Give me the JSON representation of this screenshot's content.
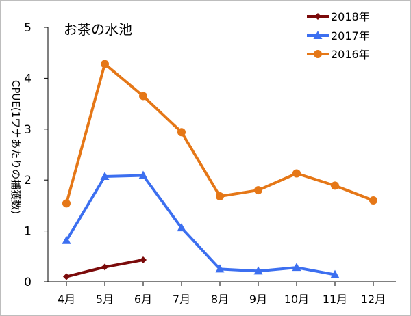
{
  "chart_data": {
    "type": "line",
    "title": "お茶の水池",
    "xlabel": "",
    "ylabel": "CPUE(1ワナあたりの捕獲数)",
    "categories": [
      "4月",
      "5月",
      "6月",
      "7月",
      "8月",
      "9月",
      "10月",
      "11月",
      "12月"
    ],
    "ylim": [
      0,
      5
    ],
    "yticks": [
      0,
      1,
      2,
      3,
      4,
      5
    ],
    "grid": false,
    "legend_position": "top-right",
    "series": [
      {
        "name": "2018年",
        "color": "#7b0a0a",
        "marker": "diamond",
        "values": [
          0.1,
          0.29,
          0.43,
          null,
          null,
          null,
          null,
          null,
          null
        ]
      },
      {
        "name": "2017年",
        "color": "#3c6ff0",
        "marker": "triangle",
        "values": [
          0.81,
          2.07,
          2.09,
          1.06,
          0.25,
          0.21,
          0.28,
          0.14,
          null
        ]
      },
      {
        "name": "2016年",
        "color": "#e57717",
        "marker": "circle",
        "values": [
          1.54,
          4.28,
          3.65,
          2.94,
          1.68,
          1.8,
          2.13,
          1.89,
          1.6
        ]
      }
    ]
  }
}
